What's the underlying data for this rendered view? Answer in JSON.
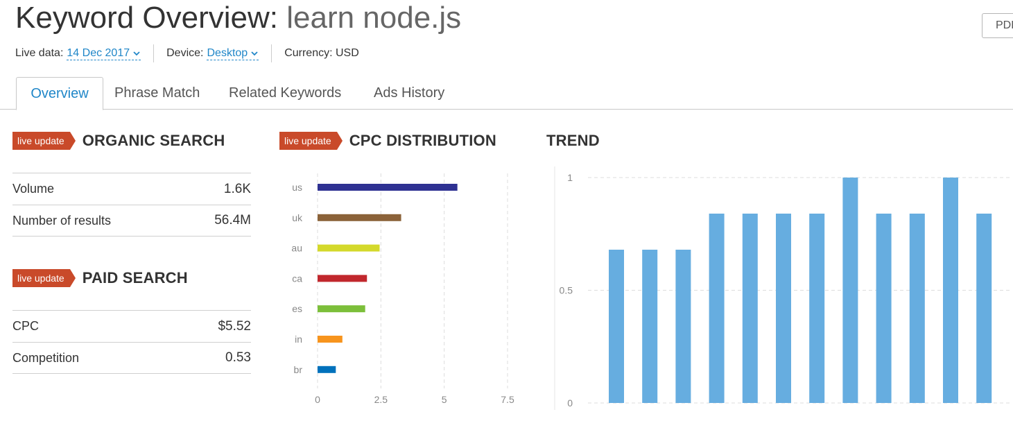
{
  "header": {
    "title_prefix": "Keyword Overview: ",
    "keyword": "learn node.js",
    "pdf_label": "PDF"
  },
  "meta": {
    "live_data_label": "Live data:",
    "live_data_value": "14 Dec 2017",
    "device_label": "Device:",
    "device_value": "Desktop",
    "currency_label": "Currency: USD"
  },
  "tabs": [
    {
      "label": "Overview",
      "active": true
    },
    {
      "label": "Phrase Match",
      "active": false
    },
    {
      "label": "Related Keywords",
      "active": false
    },
    {
      "label": "Ads History",
      "active": false
    }
  ],
  "badge_label": "live update",
  "organic": {
    "title": "ORGANIC SEARCH",
    "rows": [
      {
        "label": "Volume",
        "value": "1.6K"
      },
      {
        "label": "Number of results",
        "value": "56.4M"
      }
    ]
  },
  "paid": {
    "title": "PAID SEARCH",
    "rows": [
      {
        "label": "CPC",
        "value": "$5.52"
      },
      {
        "label": "Competition",
        "value": "0.53"
      }
    ]
  },
  "cpc_title": "CPC DISTRIBUTION",
  "trend_title": "TREND",
  "chart_data": [
    {
      "type": "bar",
      "orientation": "horizontal",
      "title": "CPC DISTRIBUTION",
      "categories": [
        "us",
        "uk",
        "au",
        "ca",
        "es",
        "in",
        "br"
      ],
      "values": [
        5.52,
        3.3,
        2.45,
        1.95,
        1.88,
        0.98,
        0.72
      ],
      "colors": [
        "#2e3192",
        "#8b6239",
        "#d4d92b",
        "#c1272d",
        "#7cbf3a",
        "#f7941d",
        "#0071bc"
      ],
      "xlim": [
        0,
        7.5
      ],
      "xticks": [
        "0",
        "2.5",
        "5",
        "7.5"
      ],
      "grid": true
    },
    {
      "type": "bar",
      "title": "TREND",
      "values": [
        0.68,
        0.68,
        0.68,
        0.84,
        0.84,
        0.84,
        0.84,
        1,
        0.84,
        0.84,
        1,
        0.84
      ],
      "color": "#66ade0",
      "ylim": [
        0,
        1
      ],
      "yticks": [
        "0",
        "0.5",
        "1"
      ],
      "grid": true
    }
  ]
}
